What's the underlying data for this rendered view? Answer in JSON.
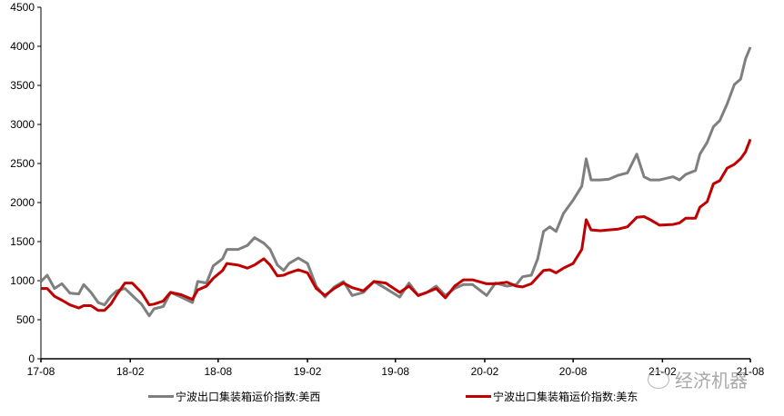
{
  "chart_data": {
    "type": "line",
    "title": "",
    "xlabel": "",
    "ylabel": "",
    "ylim": [
      0,
      4500
    ],
    "yticks": [
      0,
      500,
      1000,
      1500,
      2000,
      2500,
      3000,
      3500,
      4000,
      4500
    ],
    "xlim": [
      "2017-08-01",
      "2021-08-01"
    ],
    "xticks": [
      {
        "label": "17-08",
        "date": "2017-08-01"
      },
      {
        "label": "18-02",
        "date": "2018-02-01"
      },
      {
        "label": "18-08",
        "date": "2018-08-01"
      },
      {
        "label": "19-02",
        "date": "2019-02-01"
      },
      {
        "label": "19-08",
        "date": "2019-08-01"
      },
      {
        "label": "20-02",
        "date": "2020-02-01"
      },
      {
        "label": "20-08",
        "date": "2020-08-01"
      },
      {
        "label": "21-02",
        "date": "2021-02-01"
      },
      {
        "label": "21-08",
        "date": "2021-08-01"
      }
    ],
    "grid": false,
    "legend_position": "bottom",
    "x": [
      "2017-08-01",
      "2017-08-14",
      "2017-08-29",
      "2017-09-13",
      "2017-09-30",
      "2017-10-18",
      "2017-10-28",
      "2017-11-12",
      "2017-11-27",
      "2017-12-10",
      "2017-12-23",
      "2018-01-04",
      "2018-01-21",
      "2018-02-05",
      "2018-02-24",
      "2018-03-12",
      "2018-03-22",
      "2018-04-10",
      "2018-04-25",
      "2018-05-17",
      "2018-06-09",
      "2018-06-20",
      "2018-07-08",
      "2018-07-22",
      "2018-08-10",
      "2018-08-19",
      "2018-09-11",
      "2018-09-30",
      "2018-10-15",
      "2018-11-03",
      "2018-11-16",
      "2018-12-01",
      "2018-12-14",
      "2018-12-25",
      "2019-01-13",
      "2019-02-01",
      "2019-02-19",
      "2019-03-09",
      "2019-03-28",
      "2019-04-16",
      "2019-05-04",
      "2019-05-27",
      "2019-06-18",
      "2019-07-12",
      "2019-08-10",
      "2019-08-29",
      "2019-09-17",
      "2019-10-05",
      "2019-10-24",
      "2019-11-12",
      "2019-12-01",
      "2019-12-19",
      "2020-01-07",
      "2020-02-05",
      "2020-02-23",
      "2020-03-18",
      "2020-04-06",
      "2020-04-19",
      "2020-05-07",
      "2020-05-20",
      "2020-06-01",
      "2020-06-14",
      "2020-06-27",
      "2020-07-12",
      "2020-08-01",
      "2020-08-19",
      "2020-08-28",
      "2020-09-07",
      "2020-09-26",
      "2020-10-14",
      "2020-11-02",
      "2020-11-21",
      "2020-12-10",
      "2020-12-25",
      "2021-01-07",
      "2021-01-26",
      "2021-02-23",
      "2021-03-08",
      "2021-03-21",
      "2021-04-10",
      "2021-04-19",
      "2021-05-04",
      "2021-05-17",
      "2021-05-30",
      "2021-06-14",
      "2021-06-29",
      "2021-07-12",
      "2021-07-22",
      "2021-08-01"
    ],
    "series": [
      {
        "name": "宁波出口集装箱运价指数:美西",
        "color": "#7f7f7f",
        "values": [
          990,
          1070,
          900,
          960,
          840,
          830,
          950,
          850,
          720,
          690,
          800,
          870,
          900,
          810,
          700,
          550,
          640,
          670,
          850,
          790,
          720,
          990,
          970,
          1190,
          1280,
          1400,
          1400,
          1450,
          1550,
          1480,
          1400,
          1200,
          1130,
          1220,
          1290,
          1220,
          930,
          790,
          920,
          990,
          810,
          850,
          990,
          900,
          790,
          970,
          810,
          850,
          930,
          810,
          900,
          950,
          950,
          810,
          970,
          930,
          950,
          1050,
          1070,
          1280,
          1630,
          1690,
          1630,
          1860,
          2030,
          2210,
          2560,
          2290,
          2290,
          2300,
          2350,
          2380,
          2620,
          2330,
          2290,
          2290,
          2330,
          2290,
          2360,
          2410,
          2620,
          2770,
          2970,
          3050,
          3260,
          3510,
          3580,
          3840,
          3990
        ]
      },
      {
        "name": "宁波出口集装箱运价指数:美东",
        "color": "#c00000",
        "values": [
          900,
          900,
          800,
          750,
          690,
          650,
          680,
          680,
          620,
          620,
          700,
          820,
          970,
          970,
          850,
          690,
          700,
          740,
          850,
          820,
          760,
          880,
          930,
          1030,
          1130,
          1220,
          1200,
          1160,
          1200,
          1280,
          1200,
          1060,
          1070,
          1100,
          1140,
          1100,
          900,
          810,
          900,
          970,
          910,
          870,
          990,
          970,
          850,
          930,
          810,
          850,
          900,
          780,
          930,
          1010,
          1010,
          960,
          960,
          980,
          930,
          920,
          960,
          1050,
          1130,
          1140,
          1100,
          1160,
          1220,
          1400,
          1780,
          1650,
          1640,
          1650,
          1660,
          1690,
          1810,
          1820,
          1780,
          1710,
          1720,
          1740,
          1800,
          1800,
          1940,
          2010,
          2240,
          2280,
          2440,
          2490,
          2560,
          2650,
          2810
        ]
      }
    ]
  },
  "watermark": {
    "text": "经济机器",
    "icon": "wechat-icon"
  }
}
